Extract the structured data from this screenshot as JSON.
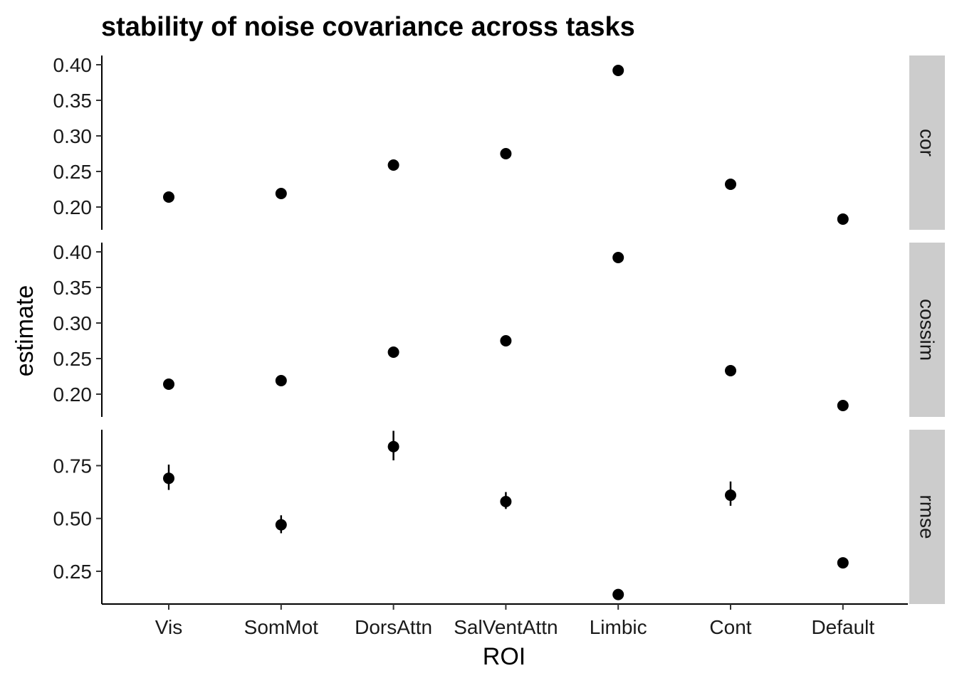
{
  "chart_data": {
    "type": "scatter",
    "title": "stability of noise covariance across tasks",
    "xlabel": "ROI",
    "ylabel": "estimate",
    "categories": [
      "Vis",
      "SomMot",
      "DorsAttn",
      "SalVentAttn",
      "Limbic",
      "Cont",
      "Default"
    ],
    "facets": [
      {
        "name": "cor",
        "ylim": [
          0.168,
          0.413
        ],
        "yticks": [
          0.2,
          0.25,
          0.3,
          0.35,
          0.4
        ],
        "ytick_labels": [
          "0.20",
          "0.25",
          "0.30",
          "0.35",
          "0.40"
        ],
        "values": [
          0.214,
          0.219,
          0.259,
          0.275,
          0.392,
          0.232,
          0.183
        ],
        "lower": [
          0.214,
          0.219,
          0.259,
          0.275,
          0.389,
          0.232,
          0.183
        ],
        "upper": [
          0.214,
          0.219,
          0.259,
          0.275,
          0.395,
          0.232,
          0.183
        ]
      },
      {
        "name": "cossim",
        "ylim": [
          0.168,
          0.413
        ],
        "yticks": [
          0.2,
          0.25,
          0.3,
          0.35,
          0.4
        ],
        "ytick_labels": [
          "0.20",
          "0.25",
          "0.30",
          "0.35",
          "0.40"
        ],
        "values": [
          0.214,
          0.219,
          0.259,
          0.275,
          0.392,
          0.233,
          0.184
        ],
        "lower": [
          0.214,
          0.219,
          0.259,
          0.275,
          0.389,
          0.233,
          0.184
        ],
        "upper": [
          0.214,
          0.219,
          0.259,
          0.275,
          0.395,
          0.233,
          0.184
        ]
      },
      {
        "name": "rmse",
        "ylim": [
          0.095,
          0.92
        ],
        "yticks": [
          0.25,
          0.5,
          0.75
        ],
        "ytick_labels": [
          "0.25",
          "0.50",
          "0.75"
        ],
        "values": [
          0.69,
          0.47,
          0.84,
          0.58,
          0.14,
          0.61,
          0.29
        ],
        "lower": [
          0.635,
          0.43,
          0.775,
          0.545,
          0.14,
          0.56,
          0.29
        ],
        "upper": [
          0.755,
          0.515,
          0.915,
          0.625,
          0.14,
          0.675,
          0.29
        ]
      }
    ],
    "grid": false,
    "colors": {
      "point": "#000000",
      "strip": "#cccccc",
      "axis": "#000000"
    }
  }
}
